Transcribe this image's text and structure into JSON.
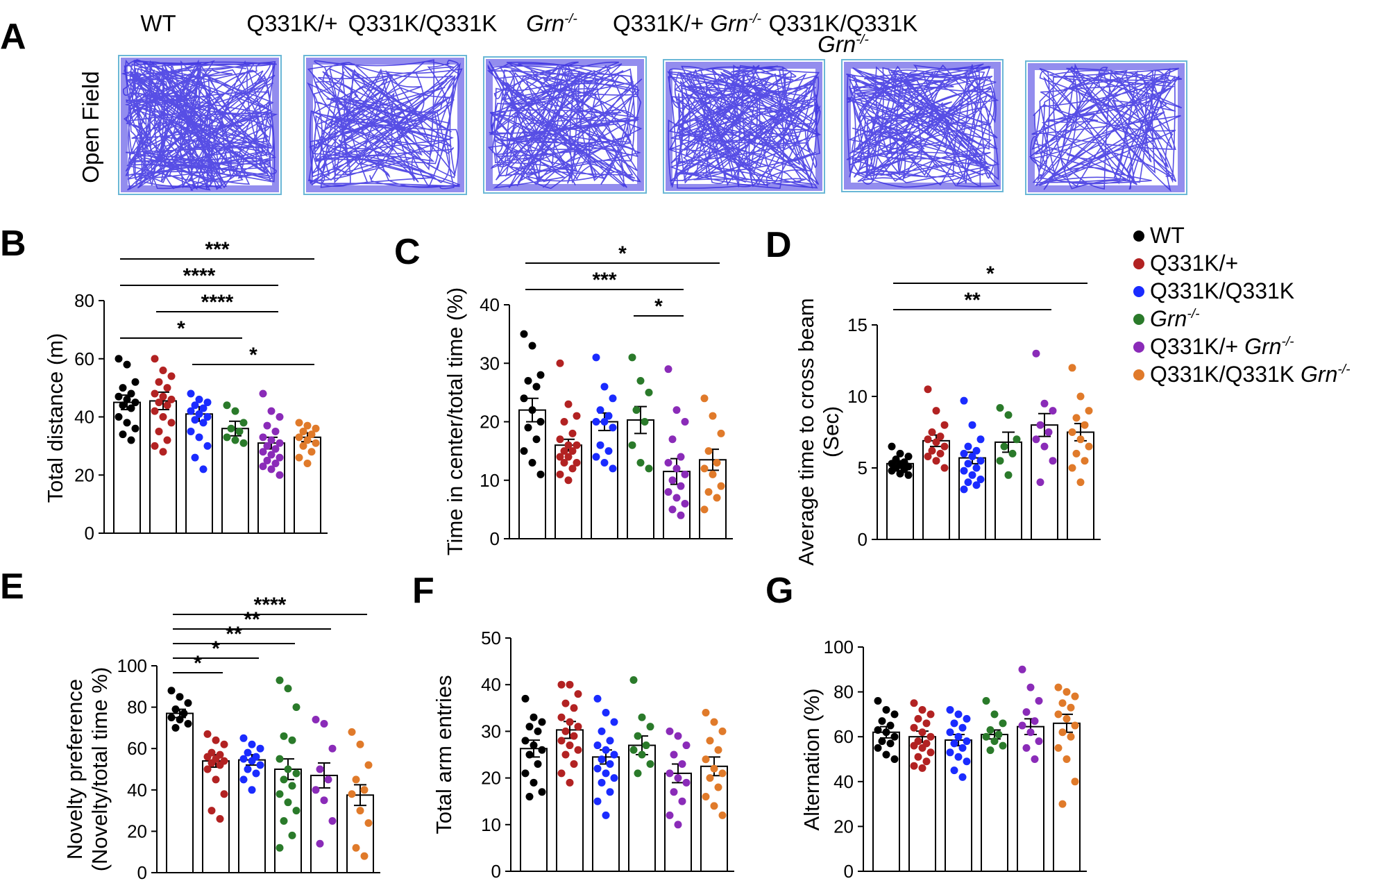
{
  "figure": {
    "panel_a_letter": "A",
    "panel_a_ylabel": "Open  Field",
    "column_labels": [
      {
        "main": "WT",
        "italic": "",
        "line2": ""
      },
      {
        "main": "Q331K/+",
        "italic": "",
        "line2": ""
      },
      {
        "main": "Q331K/Q331K",
        "italic": "",
        "line2": ""
      },
      {
        "main": "",
        "italic": "Grn-/-",
        "line2": ""
      },
      {
        "main": "Q331K/+ ",
        "italic": "Grn-/-",
        "line2": ""
      },
      {
        "main": "Q331K/Q331K",
        "italic": "",
        "line2": "Grn-/-"
      }
    ],
    "track_color": "#3a2fe0",
    "track_border": "#6ab7d6"
  },
  "legend": [
    {
      "label": "WT",
      "italic": "",
      "color": "#000000"
    },
    {
      "label": "Q331K/+",
      "italic": "",
      "color": "#b22222"
    },
    {
      "label": "Q331K/Q331K",
      "italic": "",
      "color": "#1a2bff"
    },
    {
      "label": "",
      "italic": "Grn-/-",
      "color": "#2a7a2a"
    },
    {
      "label": "Q331K/+ ",
      "italic": "Grn-/-",
      "color": "#8a2bb8"
    },
    {
      "label": "Q331K/Q331K ",
      "italic": "Grn-/-",
      "color": "#e07a2a"
    }
  ],
  "chart_data": [
    {
      "panel": "B",
      "type": "bar",
      "ylabel": "Total distance (m)",
      "ylabel2": "",
      "ylim": [
        0,
        80
      ],
      "yticks": [
        0,
        20,
        40,
        60,
        80
      ],
      "means": [
        45,
        45.5,
        41,
        36,
        31,
        33
      ],
      "sems": [
        2.5,
        3,
        2.5,
        2.5,
        2,
        1.5
      ],
      "points": [
        [
          60,
          58,
          52,
          50,
          48,
          47,
          46,
          45,
          44,
          43,
          40,
          38,
          36,
          34,
          32
        ],
        [
          60,
          56,
          54,
          52,
          50,
          48,
          47,
          46,
          45,
          44,
          42,
          40,
          38,
          35,
          32,
          30,
          28
        ],
        [
          48,
          46,
          45,
          44,
          43,
          42,
          41,
          40,
          39,
          38,
          35,
          33,
          30,
          26,
          22
        ],
        [
          44,
          42,
          38,
          36,
          35,
          33,
          32,
          31
        ],
        [
          48,
          42,
          40,
          37,
          35,
          33,
          32,
          31,
          30,
          29,
          28,
          27,
          26,
          25,
          24,
          23,
          22,
          20
        ],
        [
          38,
          37,
          36,
          35,
          34,
          33,
          32,
          31,
          30,
          28,
          26,
          24
        ]
      ],
      "sigs": [
        {
          "g1": 0,
          "g2": 5,
          "label": "***"
        },
        {
          "g1": 0,
          "g2": 4,
          "label": "****"
        },
        {
          "g1": 1,
          "g2": 4,
          "label": "****"
        },
        {
          "g1": 0,
          "g2": 3,
          "label": "*"
        },
        {
          "g1": 2,
          "g2": 5,
          "label": "*"
        }
      ]
    },
    {
      "panel": "C",
      "type": "bar",
      "ylabel": "Time in center/total time (%)",
      "ylabel2": "",
      "ylim": [
        0,
        40
      ],
      "yticks": [
        0,
        10,
        20,
        30,
        40
      ],
      "means": [
        22,
        16,
        20,
        20.3,
        11.5,
        13.5
      ],
      "sems": [
        2,
        1,
        1.5,
        2.3,
        2.2,
        1.8
      ],
      "points": [
        [
          35,
          33,
          28,
          27,
          26,
          24,
          22,
          20,
          19,
          17,
          15,
          13,
          11
        ],
        [
          30,
          23,
          21,
          20,
          18,
          17,
          16,
          16,
          15,
          15,
          14,
          14,
          13,
          13,
          12,
          11,
          10
        ],
        [
          31,
          26,
          24,
          22,
          21,
          20,
          20,
          19,
          16,
          15,
          14,
          13,
          12
        ],
        [
          31,
          27,
          25,
          22,
          20,
          16,
          13,
          12
        ],
        [
          29,
          22,
          20,
          17,
          14,
          13,
          12,
          11,
          10,
          9,
          8,
          7,
          6,
          5,
          4
        ],
        [
          24,
          21,
          18,
          15,
          13,
          12,
          11,
          9,
          8,
          7,
          5
        ]
      ],
      "sigs": [
        {
          "g1": 0,
          "g2": 5,
          "label": "*"
        },
        {
          "g1": 0,
          "g2": 4,
          "label": "***"
        },
        {
          "g1": 3,
          "g2": 4,
          "label": "*"
        }
      ]
    },
    {
      "panel": "D",
      "type": "bar",
      "ylabel": "Average time to cross beam",
      "ylabel2": "(Sec)",
      "ylim": [
        0,
        15
      ],
      "yticks": [
        0,
        5,
        10,
        15
      ],
      "means": [
        5.3,
        6.9,
        5.7,
        6.8,
        8.0,
        7.5
      ],
      "sems": [
        0.2,
        0.4,
        0.4,
        0.7,
        0.8,
        0.6
      ],
      "points": [
        [
          6.5,
          6,
          5.8,
          5.6,
          5.4,
          5.3,
          5.2,
          5.1,
          5,
          4.9,
          4.8,
          4.6,
          4.5
        ],
        [
          10.5,
          9,
          8,
          7.5,
          7.2,
          7,
          6.8,
          6.5,
          6.2,
          6,
          5.8,
          5.5,
          5
        ],
        [
          9.7,
          8,
          7,
          6.5,
          6.2,
          6,
          5.8,
          5.5,
          5.3,
          5,
          4.8,
          4.5,
          4.2,
          4,
          3.8,
          3.5
        ],
        [
          9.2,
          8.7,
          7,
          6.5,
          6,
          5.5,
          4.5
        ],
        [
          13,
          9.5,
          9,
          8,
          7.5,
          7,
          6.5,
          5.5,
          4
        ],
        [
          12,
          10,
          9,
          8.5,
          8,
          7.5,
          7,
          6.5,
          6,
          5.5,
          5,
          4
        ]
      ],
      "sigs": [
        {
          "g1": 0,
          "g2": 5,
          "label": "*"
        },
        {
          "g1": 0,
          "g2": 4,
          "label": "**"
        }
      ]
    },
    {
      "panel": "E",
      "type": "bar",
      "ylabel": "Novelty preference",
      "ylabel2": "(Novelty/total time  %)",
      "ylim": [
        0,
        100
      ],
      "yticks": [
        0,
        20,
        40,
        60,
        80,
        100
      ],
      "means": [
        77,
        54,
        54.5,
        50,
        47,
        37.5
      ],
      "sems": [
        2,
        3,
        2.5,
        5,
        6,
        5
      ],
      "points": [
        [
          88,
          85,
          82,
          79,
          77,
          75,
          74,
          72,
          70
        ],
        [
          67,
          64,
          62,
          58,
          57,
          56,
          55,
          54,
          53,
          52,
          50,
          45,
          38,
          30,
          26
        ],
        [
          65,
          62,
          60,
          58,
          56,
          55,
          54,
          52,
          50,
          48,
          45,
          40
        ],
        [
          93,
          89,
          80,
          66,
          64,
          55,
          50,
          48,
          45,
          42,
          38,
          34,
          30,
          25,
          18,
          12
        ],
        [
          74,
          72,
          60,
          50,
          45,
          40,
          35,
          25,
          14
        ],
        [
          68,
          62,
          52,
          45,
          40,
          38,
          30,
          24,
          12,
          8
        ]
      ],
      "sigs": [
        {
          "g1": 0,
          "g2": 5,
          "label": "****"
        },
        {
          "g1": 0,
          "g2": 4,
          "label": "**"
        },
        {
          "g1": 0,
          "g2": 3,
          "label": "**"
        },
        {
          "g1": 0,
          "g2": 2,
          "label": "*"
        },
        {
          "g1": 0,
          "g2": 1,
          "label": "*"
        }
      ]
    },
    {
      "panel": "F",
      "type": "bar",
      "ylabel": "Total arm entries",
      "ylabel2": "",
      "ylim": [
        0,
        50
      ],
      "yticks": [
        0,
        10,
        20,
        30,
        40,
        50
      ],
      "means": [
        26.3,
        30.3,
        24.5,
        27,
        21,
        22.5
      ],
      "sems": [
        1.8,
        1.8,
        1.5,
        2,
        2,
        2
      ],
      "points": [
        [
          37,
          33,
          32,
          31,
          30,
          28,
          27,
          26,
          25,
          23,
          21,
          19,
          17,
          16
        ],
        [
          40,
          40,
          38,
          36,
          35,
          33,
          32,
          31,
          30,
          29,
          28,
          27,
          26,
          25,
          23,
          21,
          19
        ],
        [
          37,
          34,
          32,
          30,
          28,
          27,
          26,
          25,
          24,
          23,
          22,
          21,
          20,
          19,
          17,
          15,
          12
        ],
        [
          41,
          33,
          31,
          29,
          27,
          26,
          25,
          23,
          21
        ],
        [
          30,
          29,
          27,
          25,
          23,
          21,
          20,
          19,
          17,
          15,
          12,
          10
        ],
        [
          34,
          32,
          30,
          28,
          26,
          24,
          22,
          21,
          20,
          18,
          16,
          14,
          12
        ]
      ],
      "sigs": []
    },
    {
      "panel": "G",
      "type": "bar",
      "ylabel": "Alternation (%)",
      "ylabel2": "",
      "ylim": [
        0,
        100
      ],
      "yticks": [
        0,
        20,
        40,
        60,
        80,
        100
      ],
      "means": [
        62,
        60,
        58.5,
        61,
        64.5,
        66
      ],
      "sems": [
        2.5,
        2.5,
        2.5,
        2,
        3.5,
        4
      ],
      "points": [
        [
          76,
          72,
          70,
          67,
          65,
          63,
          62,
          60,
          58,
          57,
          55,
          52,
          50
        ],
        [
          75,
          72,
          70,
          68,
          66,
          64,
          62,
          60,
          58,
          57,
          56,
          55,
          53,
          51,
          49,
          47,
          46
        ],
        [
          72,
          70,
          68,
          66,
          64,
          62,
          60,
          58,
          57,
          55,
          53,
          51,
          49,
          45,
          42
        ],
        [
          76,
          70,
          66,
          63,
          61,
          60,
          58,
          56,
          54
        ],
        [
          90,
          82,
          76,
          71,
          67,
          65,
          62,
          58,
          55,
          50
        ],
        [
          82,
          80,
          78,
          75,
          73,
          70,
          68,
          65,
          62,
          60,
          55,
          50,
          40,
          30
        ]
      ],
      "sigs": []
    }
  ]
}
